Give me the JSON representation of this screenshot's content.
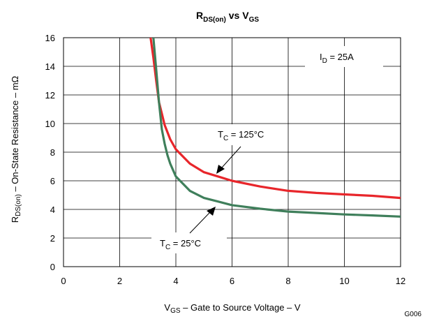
{
  "chart_data": {
    "type": "line",
    "title": "R",
    "title_sub": "DS(on)",
    "title_mid": " vs V",
    "title_sub2": "GS",
    "xlabel": {
      "pre": "V",
      "sub": "GS",
      "post": " – Gate to Source Voltage – V"
    },
    "ylabel": {
      "pre": "R",
      "sub": "DS(on)",
      "post": " – On-State Resistance – mΩ"
    },
    "xlim": [
      0,
      12
    ],
    "ylim": [
      0,
      16
    ],
    "xticks": [
      0,
      2,
      4,
      6,
      8,
      10,
      12
    ],
    "yticks": [
      0,
      2,
      4,
      6,
      8,
      10,
      12,
      14,
      16
    ],
    "grid": true,
    "series": [
      {
        "name": {
          "pre": "T",
          "sub": "C",
          "post": " = 125°C"
        },
        "color": "#e8262b",
        "x": [
          3.1,
          3.2,
          3.3,
          3.4,
          3.5,
          3.6,
          3.8,
          4.0,
          4.5,
          5.0,
          5.5,
          6.0,
          7.0,
          8.0,
          9.0,
          10.0,
          11.0,
          12.0
        ],
        "y": [
          16.0,
          14.6,
          13.0,
          11.5,
          10.7,
          9.9,
          8.9,
          8.2,
          7.2,
          6.6,
          6.3,
          6.0,
          5.6,
          5.3,
          5.15,
          5.05,
          4.95,
          4.8
        ]
      },
      {
        "name": {
          "pre": "T",
          "sub": "C",
          "post": " = 25°C"
        },
        "color": "#3f7f5b",
        "x": [
          3.2,
          3.3,
          3.4,
          3.5,
          3.6,
          3.7,
          3.8,
          4.0,
          4.5,
          5.0,
          5.5,
          6.0,
          7.0,
          8.0,
          9.0,
          10.0,
          11.0,
          12.0
        ],
        "y": [
          16.0,
          13.8,
          11.5,
          9.6,
          8.6,
          7.8,
          7.2,
          6.3,
          5.3,
          4.8,
          4.55,
          4.3,
          4.05,
          3.85,
          3.75,
          3.65,
          3.58,
          3.5
        ]
      }
    ],
    "annotations": [
      {
        "pre": "I",
        "sub": "D",
        "post": " = 25A"
      },
      {
        "pre": "T",
        "sub": "C",
        "post": " = 125°C"
      },
      {
        "pre": "T",
        "sub": "C",
        "post": " = 25°C"
      }
    ],
    "figure_code": "G006"
  }
}
